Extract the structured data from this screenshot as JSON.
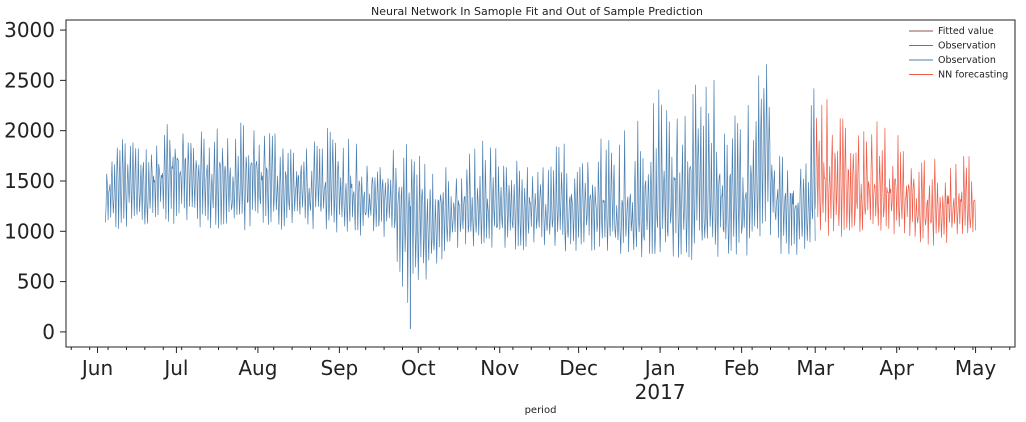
{
  "chart_data": {
    "type": "line",
    "title": "Neural Network In Samople Fit and Out of Sample Prediction",
    "xlabel": "period",
    "ylabel": "",
    "x_range": [
      "2016-05-20",
      "2017-05-16"
    ],
    "ylim": [
      -150,
      3100
    ],
    "y_ticks": [
      0,
      500,
      1000,
      1500,
      2000,
      2500,
      3000
    ],
    "x_ticks": [
      {
        "date": "2016-06-01",
        "label": "Jun"
      },
      {
        "date": "2016-07-01",
        "label": "Jul"
      },
      {
        "date": "2016-08-01",
        "label": "Aug"
      },
      {
        "date": "2016-09-01",
        "label": "Sep"
      },
      {
        "date": "2016-10-01",
        "label": "Oct"
      },
      {
        "date": "2016-11-01",
        "label": "Nov"
      },
      {
        "date": "2016-12-01",
        "label": "Dec"
      },
      {
        "date": "2017-01-01",
        "label": "Jan"
      },
      {
        "date": "2017-02-01",
        "label": "Feb"
      },
      {
        "date": "2017-03-01",
        "label": "Mar"
      },
      {
        "date": "2017-04-01",
        "label": "Apr"
      },
      {
        "date": "2017-05-01",
        "label": "May"
      }
    ],
    "year_label": {
      "date": "2017-01-01",
      "label": "2017"
    },
    "grid": false,
    "legend_position": "top-right",
    "series": [
      {
        "name": "Fitted value",
        "color": "#8c564b",
        "sampling": "daily",
        "x": [
          "2016-06-05",
          "2016-06-15",
          "2016-06-25",
          "2016-07-05",
          "2016-07-15",
          "2016-07-25",
          "2016-08-05",
          "2016-08-15",
          "2016-08-25",
          "2016-09-05",
          "2016-09-15",
          "2016-09-25",
          "2016-10-05",
          "2016-10-15",
          "2016-10-25",
          "2016-11-05",
          "2016-11-15",
          "2016-11-25",
          "2016-12-05",
          "2016-12-15",
          "2016-12-25",
          "2017-01-05",
          "2017-01-15",
          "2017-01-25",
          "2017-02-05",
          "2017-02-15",
          "2017-02-25"
        ],
        "y": [
          1300,
          1500,
          1450,
          1600,
          1550,
          1450,
          1500,
          1450,
          1400,
          1450,
          1350,
          1300,
          1100,
          1200,
          1250,
          1200,
          1250,
          1200,
          1300,
          1250,
          1200,
          1350,
          1400,
          1250,
          1350,
          1900,
          1250
        ]
      },
      {
        "name": "Observation",
        "color": "#4a7fb0",
        "sampling": "hourly",
        "x": [
          "2016-06-04",
          "2016-06-10",
          "2016-06-20",
          "2016-07-01",
          "2016-07-10",
          "2016-07-20",
          "2016-08-01",
          "2016-08-10",
          "2016-08-20",
          "2016-09-01",
          "2016-09-10",
          "2016-09-20",
          "2016-09-28",
          "2016-10-05",
          "2016-10-15",
          "2016-10-25",
          "2016-11-05",
          "2016-11-15",
          "2016-11-25",
          "2016-12-05",
          "2016-12-15",
          "2016-12-25",
          "2017-01-05",
          "2017-01-15",
          "2017-01-25",
          "2017-02-05",
          "2017-02-10",
          "2017-02-15",
          "2017-02-25",
          "2017-03-01"
        ],
        "y_low": [
          950,
          1000,
          1000,
          1050,
          1000,
          1000,
          1000,
          1000,
          1000,
          980,
          950,
          900,
          30,
          600,
          800,
          800,
          780,
          800,
          800,
          800,
          790,
          700,
          740,
          700,
          740,
          760,
          900,
          740,
          740,
          800
        ],
        "y_high": [
          1700,
          1950,
          2000,
          2100,
          2000,
          2100,
          2150,
          2050,
          2000,
          2050,
          1950,
          1850,
          1900,
          1650,
          1700,
          1950,
          1800,
          1600,
          1950,
          1950,
          2050,
          2300,
          2650,
          2450,
          2600,
          2300,
          2950,
          1800,
          1750,
          2650
        ],
        "y_mid": [
          1300,
          1500,
          1450,
          1600,
          1550,
          1450,
          1500,
          1450,
          1400,
          1450,
          1350,
          1300,
          1250,
          1100,
          1200,
          1250,
          1200,
          1250,
          1200,
          1300,
          1250,
          1200,
          1350,
          1400,
          1250,
          1350,
          1900,
          1250,
          1250,
          1400
        ]
      },
      {
        "name": "Observation",
        "color": "#4a7fb0",
        "sampling": "hourly",
        "x": [
          "2017-03-01",
          "2017-05-01"
        ],
        "y": [
          1400,
          1050
        ]
      },
      {
        "name": "NN forecasting",
        "color": "#ee5c48",
        "sampling": "hourly",
        "x": [
          "2017-03-01",
          "2017-03-08",
          "2017-03-15",
          "2017-03-22",
          "2017-04-01",
          "2017-04-08",
          "2017-04-15",
          "2017-04-22",
          "2017-05-01"
        ],
        "y_low": [
          1000,
          900,
          950,
          1000,
          950,
          900,
          850,
          850,
          950
        ],
        "y_high": [
          2700,
          2300,
          2100,
          2200,
          2000,
          1850,
          1800,
          1700,
          1800
        ],
        "y_mid": [
          1500,
          1450,
          1400,
          1450,
          1350,
          1300,
          1250,
          1250,
          1250
        ]
      }
    ]
  }
}
